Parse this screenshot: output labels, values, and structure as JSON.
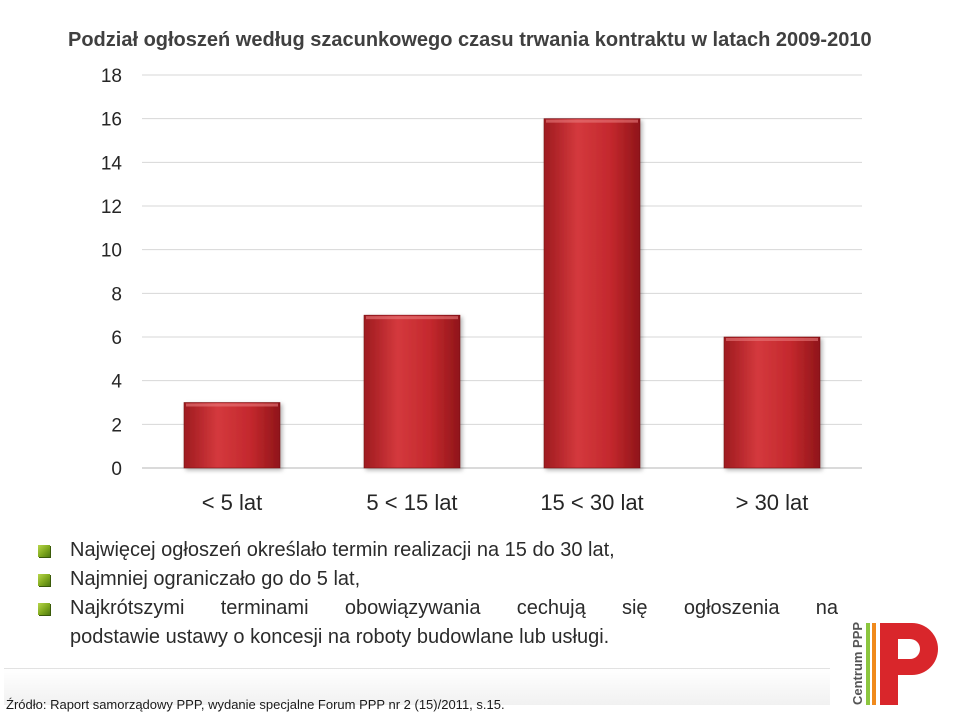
{
  "chart_data": {
    "type": "bar",
    "title": "Podział ogłoszeń według szacunkowego czasu trwania kontraktu w latach 2009-2010",
    "categories": [
      "< 5 lat",
      "5 < 15 lat",
      "15 < 30 lat",
      "> 30 lat"
    ],
    "values": [
      3,
      7,
      16,
      6
    ],
    "ylim": [
      0,
      18
    ],
    "yticks": [
      "0",
      "2",
      "4",
      "6",
      "8",
      "10",
      "12",
      "14",
      "16",
      "18"
    ],
    "grid": true,
    "legend": "none",
    "bar_color": "#c0272d"
  },
  "bullets": [
    "Najwięcej ogłoszeń określało termin realizacji na 15 do 30 lat,",
    "Najmniej ograniczało go do 5 lat,",
    "Najkrótszymi terminami obowiązywania cechują się ogłoszenia na",
    "podstawie ustawy o koncesji na roboty budowlane lub usługi."
  ],
  "source": "Źródło: Raport samorządowy PPP, wydanie specjalne Forum PPP nr 2 (15)/2011, s.15.",
  "logo": {
    "letter": "P",
    "text": "Centrum PPP",
    "colors": {
      "red": "#d9262b",
      "orange": "#f08a1c",
      "green": "#8cc63f"
    }
  }
}
